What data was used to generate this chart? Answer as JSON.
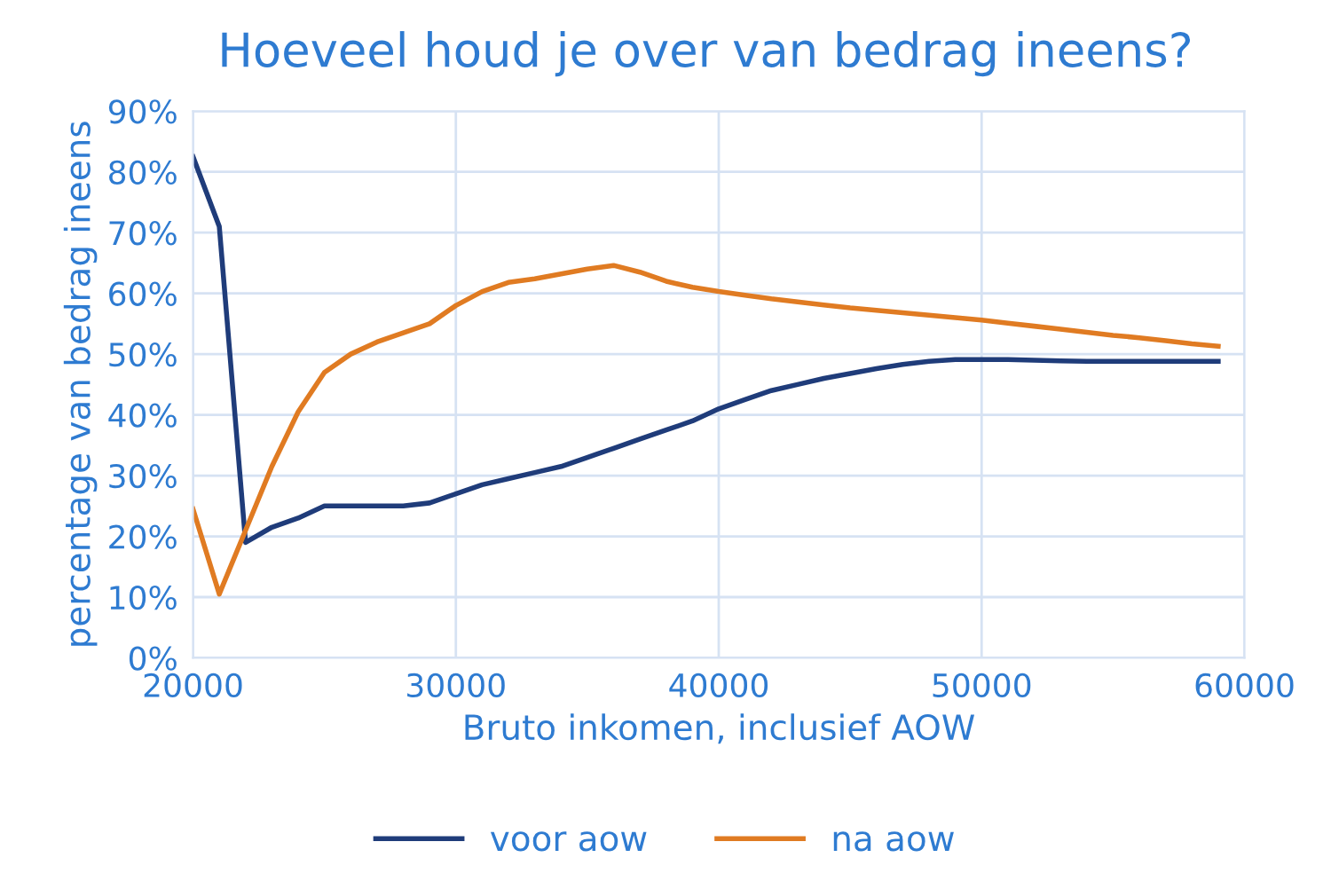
{
  "chart_data": {
    "type": "line",
    "title": "Hoeveel houd je over van bedrag ineens?",
    "xlabel": "Bruto inkomen, inclusief AOW",
    "ylabel": "percentage van bedrag ineens",
    "x": [
      20000,
      21000,
      22000,
      23000,
      24000,
      25000,
      26000,
      27000,
      28000,
      29000,
      30000,
      31000,
      32000,
      33000,
      34000,
      35000,
      36000,
      37000,
      38000,
      39000,
      40000,
      41000,
      42000,
      43000,
      44000,
      45000,
      46000,
      47000,
      48000,
      49000,
      50000,
      51000,
      52000,
      53000,
      54000,
      55000,
      56000,
      57000,
      58000,
      59000
    ],
    "series": [
      {
        "name": "voor aow",
        "color": "#1f3c7a",
        "values": [
          82.5,
          71,
          19,
          21.5,
          23,
          25,
          25,
          25,
          25,
          25.5,
          27,
          28.5,
          29.5,
          30.5,
          31.5,
          33,
          34.5,
          36,
          37.5,
          39,
          41,
          42.5,
          44,
          45,
          46,
          46.8,
          47.6,
          48.3,
          48.8,
          49.1,
          49.1,
          49.1,
          49,
          48.9,
          48.8,
          48.8,
          48.8,
          48.8,
          48.8,
          48.8
        ]
      },
      {
        "name": "na aow",
        "color": "#e07b22",
        "values": [
          24.5,
          10.5,
          21,
          31.5,
          40.5,
          47,
          50,
          52,
          53.5,
          55,
          58,
          60.3,
          61.8,
          62.4,
          63.2,
          64,
          64.6,
          63.5,
          62,
          61,
          60.3,
          59.7,
          59.1,
          58.6,
          58.1,
          57.6,
          57.2,
          56.8,
          56.4,
          56,
          55.6,
          55.1,
          54.6,
          54.1,
          53.6,
          53.1,
          52.7,
          52.2,
          51.7,
          51.3
        ]
      }
    ],
    "xlim": [
      20000,
      60000
    ],
    "xticks": [
      20000,
      30000,
      40000,
      50000,
      60000
    ],
    "ylim": [
      0,
      90
    ],
    "yticks": [
      {
        "value": 0,
        "label": "0%"
      },
      {
        "value": 10,
        "label": "10%"
      },
      {
        "value": 20,
        "label": "20%"
      },
      {
        "value": 30,
        "label": "30%"
      },
      {
        "value": 40,
        "label": "40%"
      },
      {
        "value": 50,
        "label": "50%"
      },
      {
        "value": 60,
        "label": "60%"
      },
      {
        "value": 70,
        "label": "70%"
      },
      {
        "value": 80,
        "label": "80%"
      },
      {
        "value": 90,
        "label": "90%"
      }
    ],
    "grid": true,
    "legend": "bottom",
    "marker": "none",
    "line_style": "solid"
  }
}
